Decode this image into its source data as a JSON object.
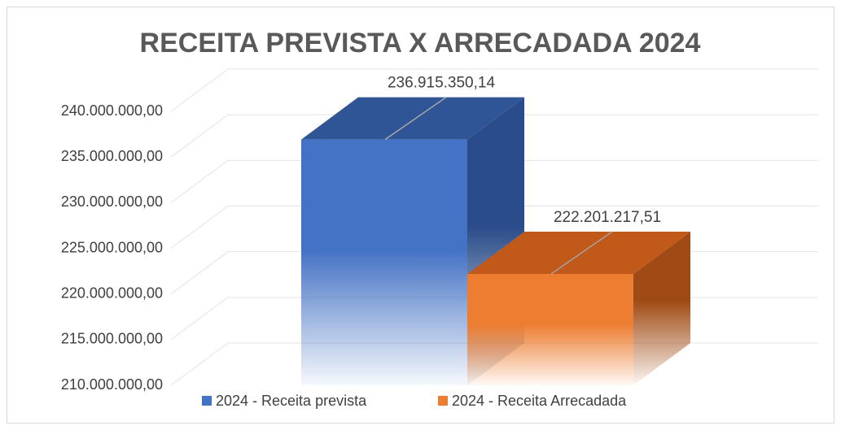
{
  "chart_data": {
    "type": "bar3d",
    "title": "RECEITA PREVISTA X ARRECADADA 2024",
    "categories": [
      null
    ],
    "series": [
      {
        "name": "2024 - Receita prevista",
        "color": "#4472c4",
        "top_color": "#2f5597",
        "side_color": "#2b4c8a",
        "values": [
          236915350.14
        ],
        "value_labels": [
          "236.915.350,14"
        ]
      },
      {
        "name": "2024 - Receita Arrecadada",
        "color": "#ed7d31",
        "top_color": "#c0591a",
        "side_color": "#a04b15",
        "values": [
          222201217.51
        ],
        "value_labels": [
          "222.201.217,51"
        ]
      }
    ],
    "ylim": [
      210000000,
      240000000
    ],
    "yticks": [
      {
        "value": 210000000,
        "label": "210.000.000,00"
      },
      {
        "value": 215000000,
        "label": "215.000.000,00"
      },
      {
        "value": 220000000,
        "label": "220.000.000,00"
      },
      {
        "value": 225000000,
        "label": "225.000.000,00"
      },
      {
        "value": 230000000,
        "label": "230.000.000,00"
      },
      {
        "value": 235000000,
        "label": "235.000.000,00"
      },
      {
        "value": 240000000,
        "label": "240.000.000,00"
      }
    ],
    "grid": true,
    "legend": "bottom"
  }
}
